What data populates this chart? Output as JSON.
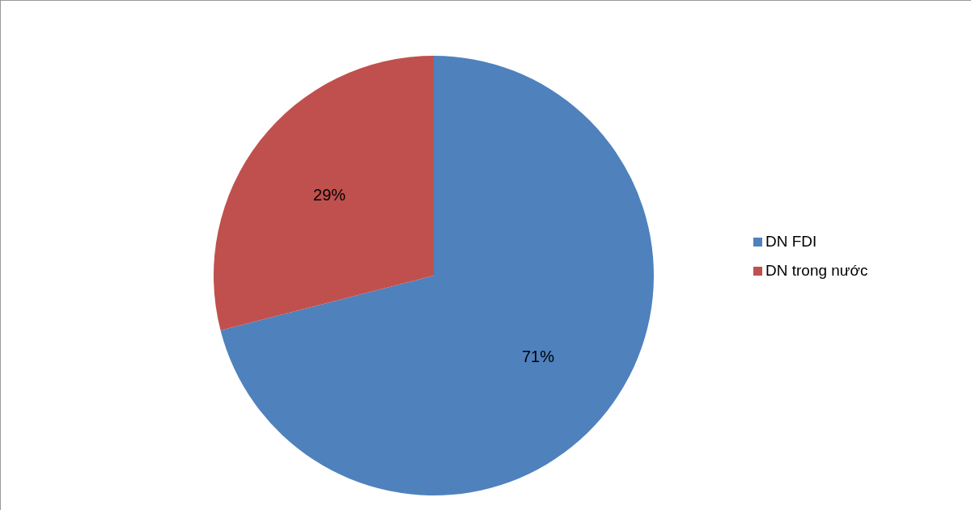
{
  "chart_data": {
    "type": "pie",
    "categories": [
      "DN FDI",
      "DN trong nước"
    ],
    "values": [
      71,
      29
    ],
    "colors": [
      "#4f81bd",
      "#c0504d"
    ],
    "value_labels": [
      "71%",
      "29%"
    ],
    "legend": "right"
  }
}
